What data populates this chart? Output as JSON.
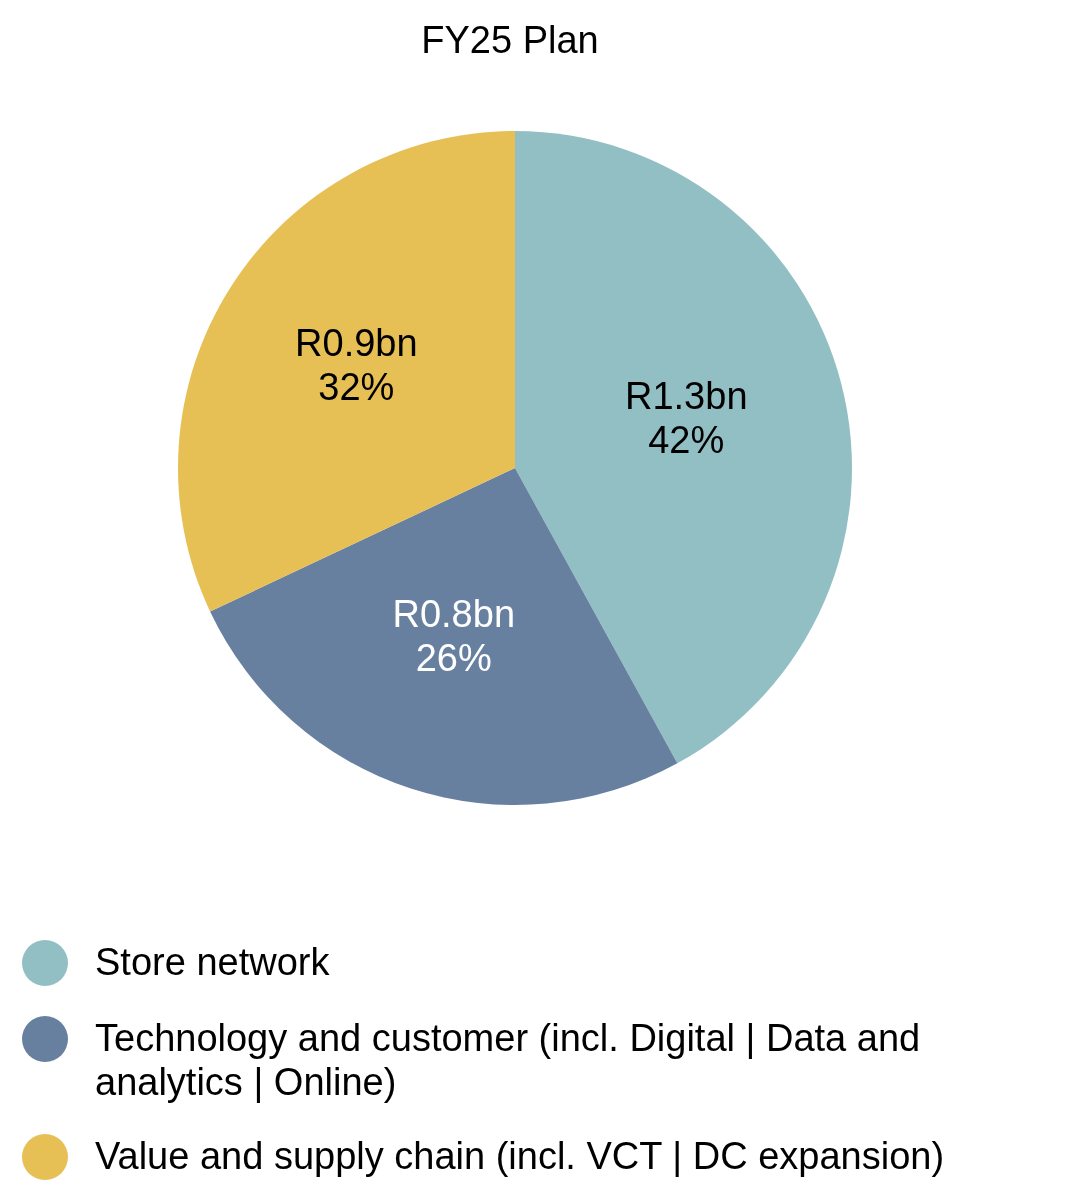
{
  "chart_data": {
    "type": "pie",
    "title": "FY25 Plan",
    "categories": [
      "Store network",
      "Technology and customer (incl. Digital | Data and analytics | Online)",
      "Value and supply chain (incl. VCT | DC expansion)"
    ],
    "values": [
      42,
      26,
      32
    ],
    "colors": [
      "#92bfc4",
      "#68809f",
      "#e6bf55"
    ],
    "value_labels": [
      "R1.3bn\n42%",
      "R0.8bn\n26%",
      "R0.9bn\n32%"
    ],
    "legend": "bottom left"
  }
}
